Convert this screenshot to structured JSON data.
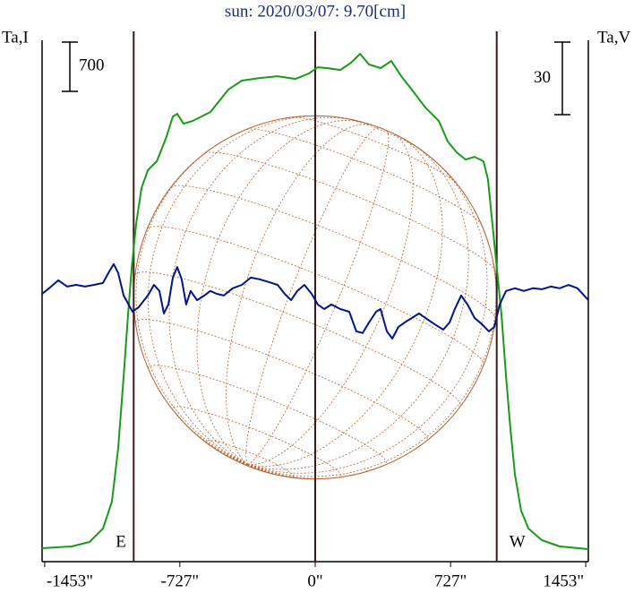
{
  "chart_data": {
    "type": "line",
    "title": "sun: 2020/03/07: 9.70[cm]",
    "y_label": "Ta,I",
    "y2_label": "Ta,V",
    "xlim": [
      -1467,
      1467
    ],
    "ylim": [
      0,
      7404
    ],
    "y2lim": [
      -110,
      105.5
    ],
    "xticks": [
      {
        "value": -1453,
        "label": "-1453\""
      },
      {
        "value": -727,
        "label": "-727\""
      },
      {
        "value": 0,
        "label": "0\""
      },
      {
        "value": 727,
        "label": "727\""
      },
      {
        "value": 1453,
        "label": "1453\""
      }
    ],
    "vlines": [
      -975,
      0,
      975
    ],
    "limb_labels": [
      "E",
      "W"
    ],
    "scale_bar": 700,
    "scale_bar2": 30,
    "series": [
      {
        "color": "#1a9a1a",
        "x": [
          -1467,
          -1308,
          -1212,
          -1140,
          -1092,
          -1058,
          -1029,
          -1005,
          -986,
          -962,
          -933,
          -899,
          -851,
          -803,
          -765,
          -741,
          -707,
          -659,
          -563,
          -467,
          -394,
          -298,
          -202,
          -106,
          -34,
          14,
          63,
          135,
          192,
          241,
          289,
          351,
          409,
          462,
          519,
          592,
          664,
          712,
          760,
          808,
          856,
          904,
          928,
          952,
          976,
          1000,
          1025,
          1049,
          1073,
          1106,
          1145,
          1217,
          1313,
          1467
        ],
        "values": [
          191,
          216,
          280,
          471,
          852,
          1615,
          2633,
          3523,
          4159,
          4795,
          5304,
          5559,
          5686,
          6004,
          6322,
          6360,
          6220,
          6258,
          6385,
          6703,
          6831,
          6869,
          6894,
          6856,
          6932,
          7021,
          7009,
          6983,
          7085,
          7212,
          7060,
          7009,
          7110,
          6894,
          6703,
          6449,
          6258,
          5966,
          5813,
          5711,
          5749,
          5686,
          5431,
          4795,
          4159,
          3523,
          2633,
          1870,
          1234,
          725,
          471,
          305,
          216,
          178
        ]
      },
      {
        "color": "#00148c",
        "axis": "y2",
        "x": [
          -1467,
          -1429,
          -1380,
          -1332,
          -1284,
          -1236,
          -1188,
          -1140,
          -1106,
          -1082,
          -1058,
          -1029,
          -981,
          -948,
          -899,
          -866,
          -837,
          -813,
          -789,
          -765,
          -741,
          -717,
          -693,
          -669,
          -635,
          -596,
          -563,
          -529,
          -491,
          -443,
          -394,
          -346,
          -298,
          -250,
          -202,
          -164,
          -130,
          -96,
          -58,
          -19,
          14,
          48,
          87,
          135,
          183,
          221,
          255,
          289,
          327,
          351,
          385,
          414,
          447,
          481,
          519,
          558,
          592,
          640,
          688,
          722,
          750,
          784,
          818,
          856,
          895,
          933,
          962,
          991,
          1025,
          1073,
          1121,
          1169,
          1217,
          1265,
          1313,
          1361,
          1409,
          1467
        ],
        "values": [
          0.7,
          3.0,
          6.3,
          3.7,
          4.4,
          3.7,
          4.4,
          5.2,
          10.0,
          13.0,
          9.3,
          0,
          -6.7,
          -4.8,
          0,
          4.4,
          1.9,
          -7.4,
          -3.7,
          7.4,
          11.8,
          6.7,
          -3.7,
          1.9,
          -1.9,
          0,
          1.9,
          0.7,
          0,
          3.0,
          4.4,
          7.4,
          6.7,
          5.6,
          4.4,
          0.7,
          -1.9,
          1.9,
          4.4,
          0.7,
          -3.7,
          -5.6,
          -3.7,
          -5.6,
          -6.7,
          -14.8,
          -15.5,
          -11.1,
          -6.7,
          -5.6,
          -14.8,
          -17.8,
          -13.0,
          -11.1,
          -9.3,
          -7.4,
          -9.3,
          -11.8,
          -14.1,
          -11.1,
          -5.6,
          0,
          -3.7,
          -9.3,
          -11.8,
          -14.8,
          -13.0,
          -3.7,
          1.9,
          3.0,
          1.9,
          3.0,
          2.6,
          3.7,
          3.0,
          4.4,
          3.0,
          -1.9
        ]
      }
    ]
  }
}
